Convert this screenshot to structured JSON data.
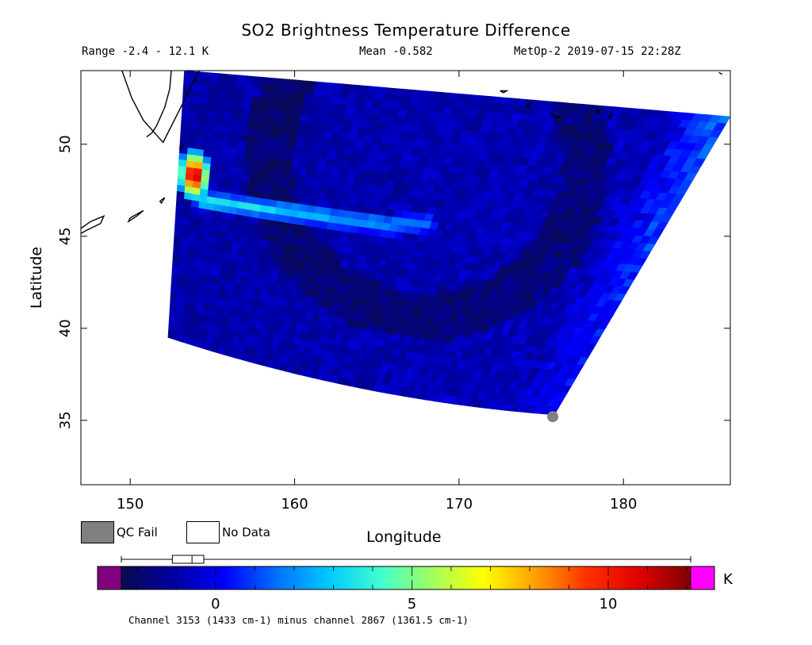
{
  "header": {
    "title": "SO2 Brightness Temperature Difference",
    "range": "Range -2.4 - 12.1 K",
    "mean": "Mean -0.582",
    "satellite_time": "MetOp-2 2019-07-15 22:28Z"
  },
  "legend": {
    "qc_fail_label": "QC Fail",
    "no_data_label": "No Data",
    "qc_fail_color": "#808080",
    "no_data_color": "#ffffff"
  },
  "colorbar": {
    "unit": "K",
    "min": -2.4,
    "max": 12.1,
    "ticks": [
      0,
      5,
      10
    ],
    "underflow_color": "#800080",
    "overflow_color": "#ff00ff",
    "stops": [
      "#0a0a50",
      "#0000a0",
      "#0000ff",
      "#0070ff",
      "#00c8ff",
      "#40ffd0",
      "#a0ff60",
      "#ffff00",
      "#ffa000",
      "#ff3000",
      "#e00000",
      "#800000"
    ],
    "boxplot": {
      "whisker_low": -2.4,
      "q1": -1.1,
      "median": -0.6,
      "q3": -0.3,
      "whisker_high": 12.1
    }
  },
  "footnote": "Channel 3153 (1433 cm-1) minus channel 2867 (1361.5 cm-1)",
  "chart_data": {
    "type": "heatmap",
    "title": "SO2 Brightness Temperature Difference",
    "xlabel": "Longitude",
    "ylabel": "Latitude",
    "xlim": [
      147,
      186.5
    ],
    "ylim": [
      31.5,
      54
    ],
    "xticks": [
      150,
      160,
      170,
      180
    ],
    "yticks": [
      35,
      40,
      45,
      50
    ],
    "swath_corners": {
      "top_left": [
        153.3,
        54
      ],
      "bottom_left": [
        152.3,
        39.5
      ],
      "bottom_right": [
        175.8,
        35.3
      ],
      "top_right": [
        186.5,
        51.5
      ]
    },
    "background_value_K": -1.0,
    "plume": {
      "source": [
        153.9,
        48.3
      ],
      "path": [
        [
          154.5,
          46.9
        ],
        [
          157,
          46.6
        ],
        [
          160,
          46.3
        ],
        [
          163,
          45.9
        ],
        [
          166,
          45.6
        ],
        [
          168,
          45.7
        ]
      ],
      "source_peak_K": 12.1,
      "plume_peak_K": 4.0
    },
    "east_edge_band_K": 3.0,
    "qc_fail_point": [
      175.7,
      35.2
    ]
  }
}
